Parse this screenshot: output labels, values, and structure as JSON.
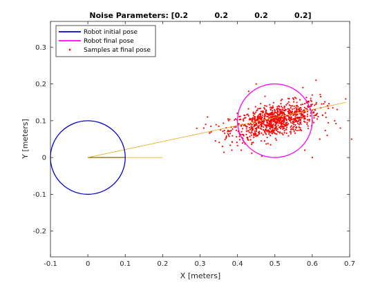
{
  "chart_data": {
    "type": "scatter",
    "title": "Noise Parameters: [0.2          0.2          0.2          0.2]",
    "xlabel": "X [meters]",
    "ylabel": "Y [meters]",
    "xlim": [
      -0.1,
      0.7
    ],
    "ylim": [
      -0.27,
      0.37
    ],
    "xticks": [
      "-0.1",
      "0",
      "0.1",
      "0.2",
      "0.3",
      "0.4",
      "0.5",
      "0.6",
      "0.7"
    ],
    "xtick_values": [
      -0.1,
      0,
      0.1,
      0.2,
      0.3,
      0.4,
      0.5,
      0.6,
      0.7
    ],
    "yticks": [
      "-0.2",
      "-0.1",
      "0",
      "0.1",
      "0.2",
      "0.3"
    ],
    "ytick_values": [
      -0.2,
      -0.1,
      0,
      0.1,
      0.2,
      0.3
    ],
    "grid": false,
    "legend_position": "top-left",
    "legend": [
      {
        "name": "Robot initial pose",
        "color": "#0000cc",
        "marker": "line"
      },
      {
        "name": "Robot final pose",
        "color": "#ff00ff",
        "marker": "line"
      },
      {
        "name": "Samples at final pose",
        "color": "#ff0000",
        "marker": "dot"
      }
    ],
    "initial_pose": {
      "x": 0,
      "y": 0,
      "radius": 0.1,
      "theta": 0,
      "color": "#0000cc"
    },
    "final_pose": {
      "x": 0.5,
      "y": 0.1,
      "radius": 0.1,
      "color": "#ff00ff"
    },
    "heading_lines": [
      {
        "x": [
          0,
          0.1
        ],
        "y": [
          0,
          0
        ],
        "color": "#000000"
      },
      {
        "x": [
          0,
          0.2
        ],
        "y": [
          0,
          0
        ],
        "color": "#e6a000"
      },
      {
        "x": [
          0,
          0.69
        ],
        "y": [
          0,
          0.15
        ],
        "color": "#e6a000"
      }
    ],
    "samples": {
      "color": "#ff0000",
      "count": 900,
      "mean": [
        0.5,
        0.1
      ],
      "std": [
        0.06,
        0.022
      ],
      "outliers": [
        [
          0.31,
          0.08
        ],
        [
          0.315,
          0.09
        ],
        [
          0.33,
          0.07
        ],
        [
          0.355,
          0.075
        ],
        [
          0.36,
          0.03
        ],
        [
          0.385,
          0.02
        ],
        [
          0.37,
          0.055
        ],
        [
          0.35,
          0.085
        ],
        [
          0.61,
          0.21
        ],
        [
          0.655,
          0.135
        ],
        [
          0.675,
          0.08
        ],
        [
          0.62,
          0.05
        ],
        [
          0.6,
          0.0
        ],
        [
          0.705,
          0.05
        ],
        [
          0.64,
          0.06
        ],
        [
          0.6,
          0.17
        ],
        [
          0.61,
          0.145
        ],
        [
          0.32,
          0.11
        ],
        [
          0.45,
          0.2
        ],
        [
          0.43,
          0.18
        ],
        [
          0.41,
          0.02
        ],
        [
          0.58,
          0.02
        ],
        [
          0.575,
          0.19
        ],
        [
          0.66,
          0.1
        ]
      ]
    }
  }
}
